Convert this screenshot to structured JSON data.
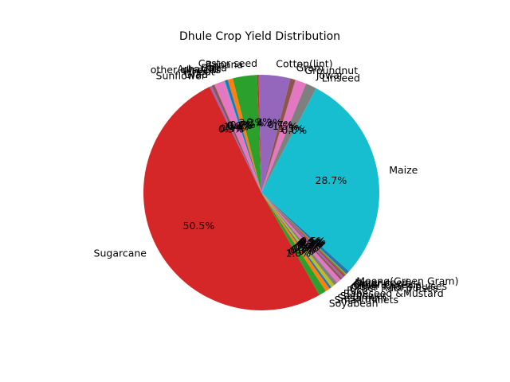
{
  "chart_data": {
    "type": "pie",
    "title": "Dhule Crop Yield Distribution",
    "start_angle_deg": 62.3,
    "direction": "counterclockwise",
    "slices": [
      {
        "label": "Linseed",
        "value": 0.0,
        "pct_label": "0.0%",
        "color": "#7f7f7f"
      },
      {
        "label": "Jowar",
        "value": 1.5,
        "pct_label": "1.5%",
        "color": "#7f7f7f"
      },
      {
        "label": "Groundnut",
        "value": 1.5,
        "pct_label": "1.5%",
        "color": "#e377c2"
      },
      {
        "label": "Gram",
        "value": 0.7,
        "pct_label": "0.7%",
        "color": "#8c564b"
      },
      {
        "label": "Cotton(lint)",
        "value": 4.3,
        "pct_label": "4.3%",
        "color": "#9467bd"
      },
      {
        "label": "Castor seed",
        "value": 0.2,
        "pct_label": "0.2%",
        "color": "#d62728"
      },
      {
        "label": "Banana",
        "value": 3.3,
        "pct_label": "3.3%",
        "color": "#2ca02c"
      },
      {
        "label": "Bajra",
        "value": 0.7,
        "pct_label": "0.7%",
        "color": "#ff7f0e"
      },
      {
        "label": "Arhar/Tur",
        "value": 0.4,
        "pct_label": "0.4%",
        "color": "#1f77b4"
      },
      {
        "label": "other oilseeds",
        "value": 0.1,
        "pct_label": "0.1%",
        "color": "#17becf"
      },
      {
        "label": "Wheat",
        "value": 1.4,
        "pct_label": "1.4%",
        "color": "#e377c2"
      },
      {
        "label": "Urad",
        "value": 0.4,
        "pct_label": "0.4%",
        "color": "#8c564b"
      },
      {
        "label": "Sunflower",
        "value": 0.3,
        "pct_label": "0.3%",
        "color": "#9467bd"
      },
      {
        "label": "Sugarcane",
        "value": 50.5,
        "pct_label": "50.5%",
        "color": "#d62728"
      },
      {
        "label": "Soyabean",
        "value": 1.0,
        "pct_label": "1.0%",
        "color": "#2ca02c"
      },
      {
        "label": "Small millets",
        "value": 0.6,
        "pct_label": "0.6%",
        "color": "#ff7f0e"
      },
      {
        "label": "Sesamum",
        "value": 0.3,
        "pct_label": "0.3%",
        "color": "#1f77b4"
      },
      {
        "label": "Safflower",
        "value": 0.5,
        "pct_label": "0.5%",
        "color": "#bcbd22"
      },
      {
        "label": "Rapeseed &Mustard",
        "value": 0.5,
        "pct_label": "0.5%",
        "color": "#7f7f7f"
      },
      {
        "label": "Rice",
        "value": 0.6,
        "pct_label": "0.6%",
        "color": "#e377c2"
      },
      {
        "label": "Other Rabi pulses",
        "value": 0.3,
        "pct_label": "0.3%",
        "color": "#8c564b"
      },
      {
        "label": "Other Kharif pulses",
        "value": 0.3,
        "pct_label": "0.3%",
        "color": "#9467bd"
      },
      {
        "label": "Other Cereals",
        "value": 0.2,
        "pct_label": "0.2%",
        "color": "#d62728"
      },
      {
        "label": "Onion",
        "value": 0.2,
        "pct_label": "0.2%",
        "color": "#2ca02c"
      },
      {
        "label": "Niger seed",
        "value": 0.1,
        "pct_label": "0.1%",
        "color": "#ff7f0e"
      },
      {
        "label": "Moong(Green Gram)",
        "value": 0.5,
        "pct_label": "0.5%",
        "color": "#1f77b4"
      },
      {
        "label": "Maize",
        "value": 28.7,
        "pct_label": "28.7%",
        "color": "#17becf"
      }
    ]
  }
}
